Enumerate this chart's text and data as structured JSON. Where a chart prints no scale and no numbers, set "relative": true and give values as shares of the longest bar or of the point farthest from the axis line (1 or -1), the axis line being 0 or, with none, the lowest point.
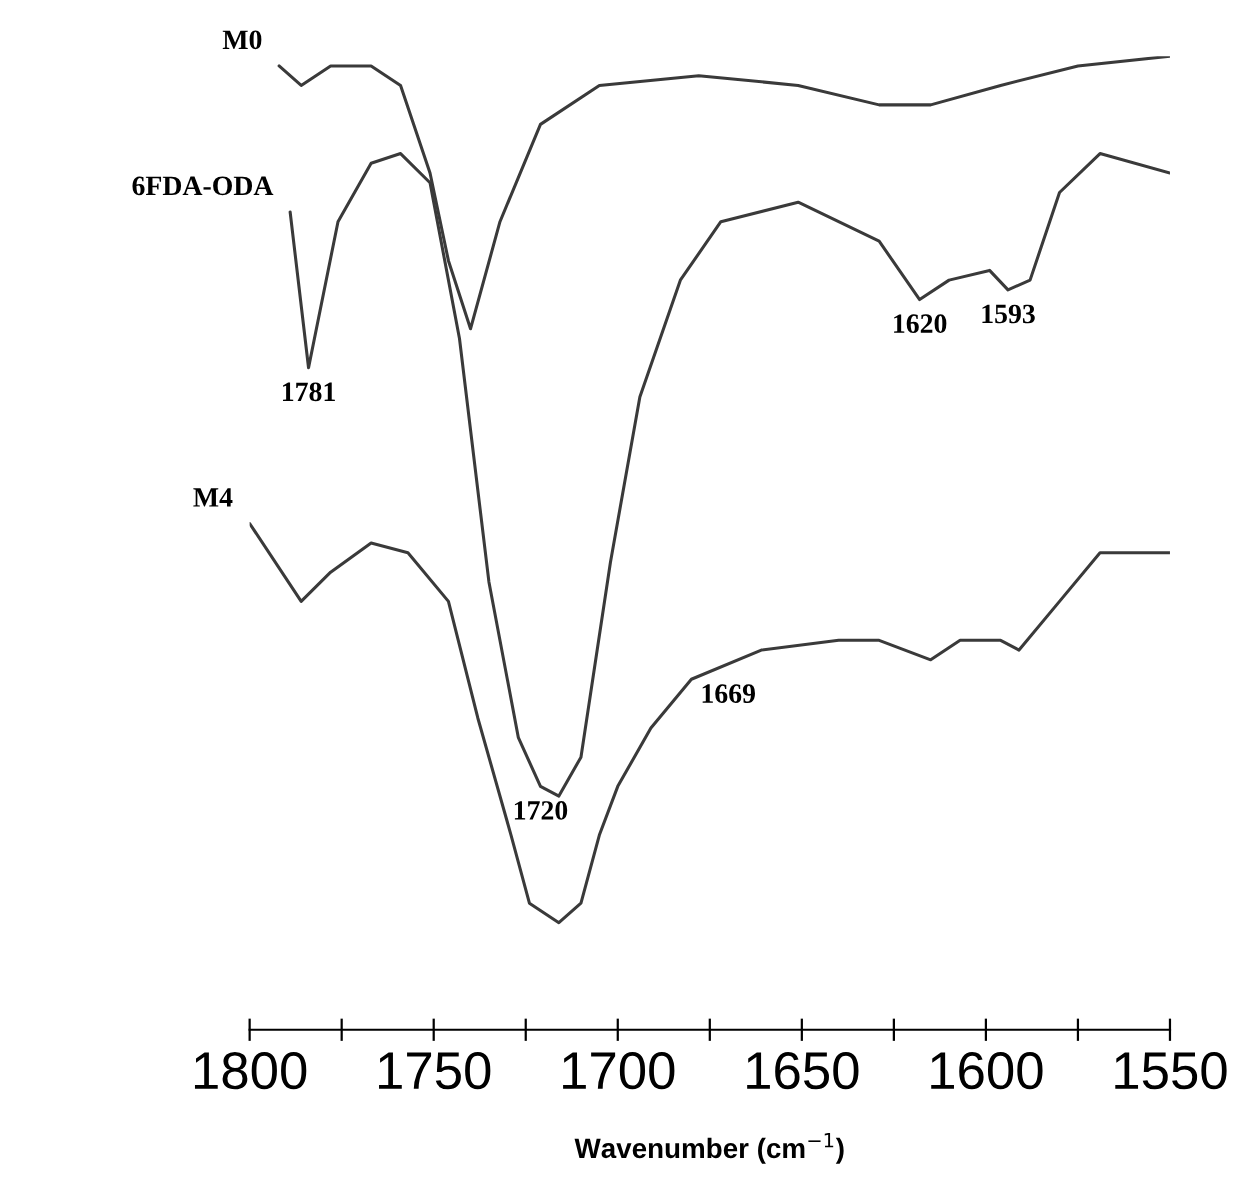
{
  "chart_data": {
    "type": "line",
    "relative": true,
    "xlabel": "Wavenumber (cm$^{−1}$)",
    "xlim": [
      1800,
      1550
    ],
    "xticks": [
      1800,
      {
        "value": 1775,
        "label": null
      },
      1750,
      {
        "value": 1725,
        "label": null
      },
      1700,
      {
        "value": 1675,
        "label": null
      },
      1650,
      {
        "value": 1625,
        "label": null
      },
      1600,
      {
        "value": 1575,
        "label": null
      },
      1550
    ],
    "tick_labels": "x",
    "grid": false,
    "legend": false,
    "marker": "none",
    "line_style": "solid",
    "series": [
      {
        "name": "M0",
        "color": "#3a3a3a",
        "x": [
          1792,
          1786,
          1778,
          1767,
          1759,
          1751,
          1746,
          1740,
          1732,
          1721,
          1705,
          1678,
          1651,
          1629,
          1615,
          1596,
          1575,
          1550
        ],
        "values": [
          0.99,
          0.97,
          0.99,
          0.99,
          0.97,
          0.88,
          0.79,
          0.72,
          0.83,
          0.93,
          0.97,
          0.98,
          0.97,
          0.95,
          0.95,
          0.97,
          0.99,
          1.0
        ]
      },
      {
        "name": "6FDA-ODA",
        "color": "#3a3a3a",
        "x": [
          1789,
          1784,
          1776,
          1767,
          1759,
          1751,
          1743,
          1735,
          1727,
          1721,
          1716,
          1710,
          1702,
          1694,
          1683,
          1672,
          1651,
          1629,
          1618,
          1610,
          1599,
          1594,
          1588,
          1580,
          1569,
          1550
        ],
        "values": [
          0.84,
          0.68,
          0.83,
          0.89,
          0.9,
          0.87,
          0.71,
          0.46,
          0.3,
          0.25,
          0.24,
          0.28,
          0.48,
          0.65,
          0.77,
          0.83,
          0.85,
          0.81,
          0.75,
          0.77,
          0.78,
          0.76,
          0.77,
          0.86,
          0.9,
          0.88
        ]
      },
      {
        "name": "M4",
        "color": "#3a3a3a",
        "x": [
          1800,
          1786,
          1778,
          1767,
          1757,
          1746,
          1738,
          1729,
          1724,
          1716,
          1710,
          1705,
          1700,
          1691,
          1680,
          1661,
          1640,
          1629,
          1615,
          1607,
          1596,
          1591,
          1580,
          1569,
          1550
        ],
        "values": [
          0.52,
          0.44,
          0.47,
          0.5,
          0.49,
          0.44,
          0.32,
          0.2,
          0.13,
          0.11,
          0.13,
          0.2,
          0.25,
          0.31,
          0.36,
          0.39,
          0.4,
          0.4,
          0.38,
          0.4,
          0.4,
          0.39,
          0.44,
          0.49,
          0.49
        ]
      }
    ],
    "annotations": [
      {
        "text": "1781",
        "x": 1784,
        "y": 0.68
      },
      {
        "text": "1720",
        "x": 1721,
        "y": 0.25
      },
      {
        "text": "1669",
        "x": 1670,
        "y": 0.37
      },
      {
        "text": "1620",
        "x": 1618,
        "y": 0.75
      },
      {
        "text": "1593",
        "x": 1594,
        "y": 0.76
      }
    ]
  }
}
